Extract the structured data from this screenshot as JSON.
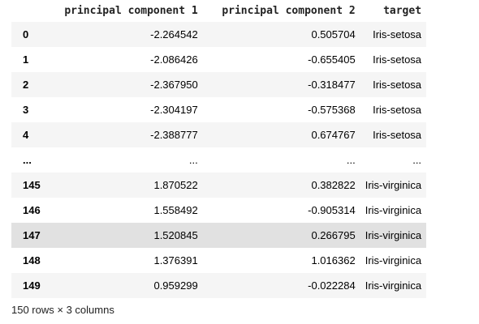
{
  "table": {
    "columns": [
      "principal component 1",
      "principal component 2",
      "target"
    ],
    "rows": [
      {
        "index": "0",
        "pc1": "-2.264542",
        "pc2": "0.505704",
        "target": "Iris-setosa"
      },
      {
        "index": "1",
        "pc1": "-2.086426",
        "pc2": "-0.655405",
        "target": "Iris-setosa"
      },
      {
        "index": "2",
        "pc1": "-2.367950",
        "pc2": "-0.318477",
        "target": "Iris-setosa"
      },
      {
        "index": "3",
        "pc1": "-2.304197",
        "pc2": "-0.575368",
        "target": "Iris-setosa"
      },
      {
        "index": "4",
        "pc1": "-2.388777",
        "pc2": "0.674767",
        "target": "Iris-setosa"
      },
      {
        "index": "...",
        "pc1": "...",
        "pc2": "...",
        "target": "..."
      },
      {
        "index": "145",
        "pc1": "1.870522",
        "pc2": "0.382822",
        "target": "Iris-virginica"
      },
      {
        "index": "146",
        "pc1": "1.558492",
        "pc2": "-0.905314",
        "target": "Iris-virginica"
      },
      {
        "index": "147",
        "pc1": "1.520845",
        "pc2": "0.266795",
        "target": "Iris-virginica"
      },
      {
        "index": "148",
        "pc1": "1.376391",
        "pc2": "1.016362",
        "target": "Iris-virginica"
      },
      {
        "index": "149",
        "pc1": "0.959299",
        "pc2": "-0.022284",
        "target": "Iris-virginica"
      }
    ]
  },
  "footer": {
    "shape_text": "150 rows × 3 columns"
  },
  "colors": {
    "row_stripe": "#f5f5f5",
    "row_hover": "#e1e1e1"
  }
}
